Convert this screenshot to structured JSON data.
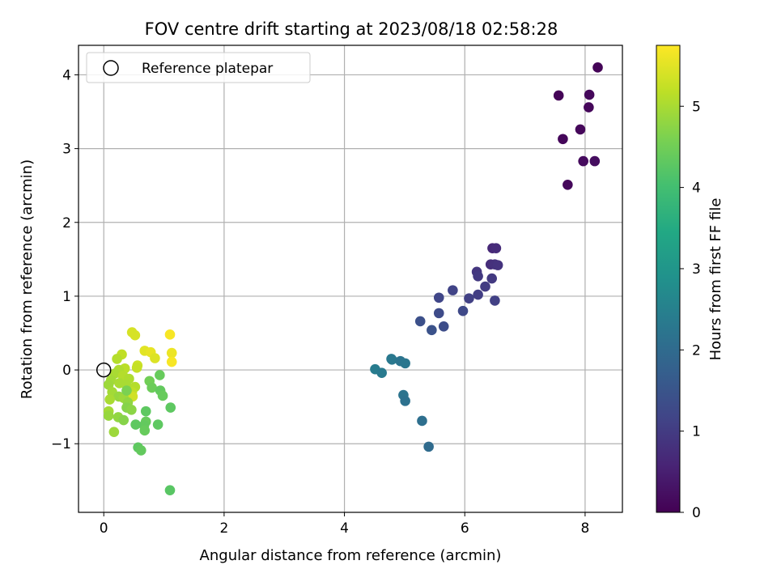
{
  "chart_data": {
    "type": "scatter",
    "title": "FOV centre drift starting at 2023/08/18 02:58:28",
    "xlabel": "Angular distance from reference (arcmin)",
    "ylabel": "Rotation from reference (arcmin)",
    "xlim": [
      -0.42,
      8.62
    ],
    "ylim": [
      -1.93,
      4.4
    ],
    "x_ticks": [
      0,
      2,
      4,
      6,
      8
    ],
    "y_ticks": [
      -1,
      0,
      1,
      2,
      3,
      4
    ],
    "x_tick_labels": [
      "0",
      "2",
      "4",
      "6",
      "8"
    ],
    "y_tick_labels": [
      "−1",
      "0",
      "1",
      "2",
      "3",
      "4"
    ],
    "grid": true,
    "legend_position": "top-left",
    "legend": [
      {
        "label": "Reference platepar",
        "marker": "open-circle"
      }
    ],
    "reference_point": {
      "x": 0,
      "y": 0
    },
    "colorbar": {
      "label": "Hours from first FF file",
      "colormap": "viridis",
      "range": [
        0,
        5.75
      ],
      "ticks": [
        0,
        1,
        2,
        3,
        4,
        5
      ],
      "tick_labels": [
        "0",
        "1",
        "2",
        "3",
        "4",
        "5"
      ]
    },
    "points": [
      {
        "x": 7.56,
        "y": 3.72,
        "c": 0.05
      },
      {
        "x": 7.63,
        "y": 3.13,
        "c": 0.1
      },
      {
        "x": 7.71,
        "y": 2.51,
        "c": 0.12
      },
      {
        "x": 7.92,
        "y": 3.26,
        "c": 0.1
      },
      {
        "x": 7.97,
        "y": 2.83,
        "c": 0.15
      },
      {
        "x": 8.06,
        "y": 3.56,
        "c": 0.1
      },
      {
        "x": 8.07,
        "y": 3.73,
        "c": 0.12
      },
      {
        "x": 8.16,
        "y": 2.83,
        "c": 0.2
      },
      {
        "x": 8.21,
        "y": 4.1,
        "c": 0.05
      },
      {
        "x": 6.46,
        "y": 1.65,
        "c": 0.65
      },
      {
        "x": 6.52,
        "y": 1.65,
        "c": 0.7
      },
      {
        "x": 6.43,
        "y": 1.43,
        "c": 0.75
      },
      {
        "x": 6.5,
        "y": 1.43,
        "c": 0.8
      },
      {
        "x": 6.55,
        "y": 1.42,
        "c": 0.85
      },
      {
        "x": 6.2,
        "y": 1.33,
        "c": 0.9
      },
      {
        "x": 6.22,
        "y": 1.27,
        "c": 0.95
      },
      {
        "x": 6.45,
        "y": 1.24,
        "c": 0.95
      },
      {
        "x": 6.34,
        "y": 1.13,
        "c": 1.0
      },
      {
        "x": 6.22,
        "y": 1.02,
        "c": 1.05
      },
      {
        "x": 6.07,
        "y": 0.97,
        "c": 1.1
      },
      {
        "x": 6.5,
        "y": 0.94,
        "c": 1.1
      },
      {
        "x": 5.8,
        "y": 1.08,
        "c": 1.15
      },
      {
        "x": 5.57,
        "y": 0.98,
        "c": 1.2
      },
      {
        "x": 5.97,
        "y": 0.8,
        "c": 1.25
      },
      {
        "x": 5.57,
        "y": 0.77,
        "c": 1.3
      },
      {
        "x": 5.65,
        "y": 0.59,
        "c": 1.35
      },
      {
        "x": 5.26,
        "y": 0.66,
        "c": 1.4
      },
      {
        "x": 5.45,
        "y": 0.54,
        "c": 1.45
      },
      {
        "x": 4.78,
        "y": 0.15,
        "c": 2.3
      },
      {
        "x": 4.79,
        "y": 0.14,
        "c": 2.3
      },
      {
        "x": 4.93,
        "y": 0.12,
        "c": 2.2
      },
      {
        "x": 5.01,
        "y": 0.09,
        "c": 2.25
      },
      {
        "x": 4.51,
        "y": 0.01,
        "c": 2.4
      },
      {
        "x": 4.62,
        "y": -0.04,
        "c": 2.35
      },
      {
        "x": 4.98,
        "y": -0.34,
        "c": 2.2
      },
      {
        "x": 5.01,
        "y": -0.42,
        "c": 2.15
      },
      {
        "x": 5.29,
        "y": -0.69,
        "c": 2.1
      },
      {
        "x": 5.4,
        "y": -1.04,
        "c": 2.0
      },
      {
        "x": 0.47,
        "y": 0.51,
        "c": 5.4
      },
      {
        "x": 0.52,
        "y": 0.47,
        "c": 5.4
      },
      {
        "x": 1.1,
        "y": 0.48,
        "c": 5.7
      },
      {
        "x": 0.68,
        "y": 0.26,
        "c": 5.5
      },
      {
        "x": 0.78,
        "y": 0.24,
        "c": 5.55
      },
      {
        "x": 0.85,
        "y": 0.16,
        "c": 5.45
      },
      {
        "x": 1.13,
        "y": 0.23,
        "c": 5.6
      },
      {
        "x": 1.13,
        "y": 0.11,
        "c": 5.7
      },
      {
        "x": 0.3,
        "y": 0.21,
        "c": 5.2
      },
      {
        "x": 0.22,
        "y": 0.15,
        "c": 5.1
      },
      {
        "x": 0.56,
        "y": 0.06,
        "c": 5.3
      },
      {
        "x": 0.55,
        "y": 0.03,
        "c": 5.25
      },
      {
        "x": 0.35,
        "y": 0.02,
        "c": 5.15
      },
      {
        "x": 0.25,
        "y": 0.0,
        "c": 5.05
      },
      {
        "x": 0.18,
        "y": -0.05,
        "c": 5.0
      },
      {
        "x": 0.32,
        "y": -0.08,
        "c": 5.1
      },
      {
        "x": 0.42,
        "y": -0.12,
        "c": 5.05
      },
      {
        "x": 0.12,
        "y": -0.14,
        "c": 4.95
      },
      {
        "x": 0.08,
        "y": -0.2,
        "c": 4.9
      },
      {
        "x": 0.26,
        "y": -0.18,
        "c": 5.0
      },
      {
        "x": 0.37,
        "y": -0.2,
        "c": 5.0
      },
      {
        "x": 0.52,
        "y": -0.23,
        "c": 5.1
      },
      {
        "x": 0.47,
        "y": -0.3,
        "c": 5.2
      },
      {
        "x": 0.48,
        "y": -0.36,
        "c": 5.35
      },
      {
        "x": 0.14,
        "y": -0.3,
        "c": 4.95
      },
      {
        "x": 0.25,
        "y": -0.36,
        "c": 4.85
      },
      {
        "x": 0.33,
        "y": -0.38,
        "c": 4.9
      },
      {
        "x": 0.1,
        "y": -0.4,
        "c": 5.0
      },
      {
        "x": 0.4,
        "y": -0.44,
        "c": 4.8
      },
      {
        "x": 0.38,
        "y": -0.51,
        "c": 4.7
      },
      {
        "x": 0.46,
        "y": -0.54,
        "c": 4.75
      },
      {
        "x": 0.08,
        "y": -0.56,
        "c": 4.95
      },
      {
        "x": 0.08,
        "y": -0.62,
        "c": 4.85
      },
      {
        "x": 0.24,
        "y": -0.64,
        "c": 4.8
      },
      {
        "x": 0.33,
        "y": -0.68,
        "c": 4.7
      },
      {
        "x": 0.38,
        "y": -0.28,
        "c": 4.6
      },
      {
        "x": 0.76,
        "y": -0.15,
        "c": 4.5
      },
      {
        "x": 0.8,
        "y": -0.24,
        "c": 4.45
      },
      {
        "x": 0.93,
        "y": -0.07,
        "c": 4.4
      },
      {
        "x": 0.94,
        "y": -0.28,
        "c": 4.35
      },
      {
        "x": 0.98,
        "y": -0.35,
        "c": 4.4
      },
      {
        "x": 0.7,
        "y": -0.56,
        "c": 4.3
      },
      {
        "x": 1.11,
        "y": -0.51,
        "c": 4.3
      },
      {
        "x": 0.7,
        "y": -0.7,
        "c": 4.4
      },
      {
        "x": 0.67,
        "y": -0.75,
        "c": 4.35
      },
      {
        "x": 0.53,
        "y": -0.74,
        "c": 4.3
      },
      {
        "x": 0.9,
        "y": -0.74,
        "c": 4.3
      },
      {
        "x": 0.68,
        "y": -0.82,
        "c": 4.4
      },
      {
        "x": 0.17,
        "y": -0.84,
        "c": 4.9
      },
      {
        "x": 0.57,
        "y": -1.05,
        "c": 4.3
      },
      {
        "x": 0.62,
        "y": -1.09,
        "c": 4.35
      },
      {
        "x": 1.1,
        "y": -1.63,
        "c": 4.25
      }
    ]
  }
}
